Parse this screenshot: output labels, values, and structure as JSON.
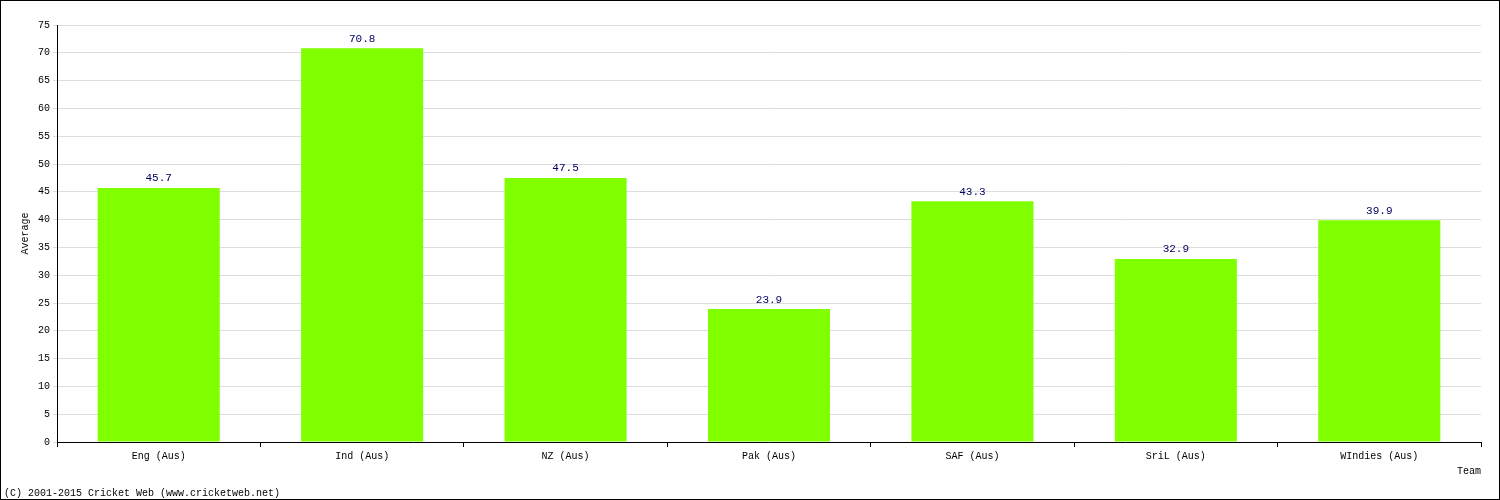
{
  "chart_data": {
    "type": "bar",
    "categories": [
      "Eng (Aus)",
      "Ind (Aus)",
      "NZ (Aus)",
      "Pak (Aus)",
      "SAF (Aus)",
      "SriL (Aus)",
      "WIndies (Aus)"
    ],
    "values": [
      45.7,
      70.8,
      47.5,
      23.9,
      43.3,
      32.9,
      39.9
    ],
    "color": "#80ff00",
    "x_label": "Team",
    "y_label": "Average",
    "footer": "(C) 2001-2015 Cricket Web (www.cricketweb.net)",
    "ylim": [
      0,
      75
    ],
    "yticks": [
      0,
      5,
      10,
      15,
      20,
      25,
      30,
      35,
      40,
      45,
      50,
      55,
      60,
      65,
      70,
      75
    ],
    "grid": true,
    "data_labels": true
  }
}
